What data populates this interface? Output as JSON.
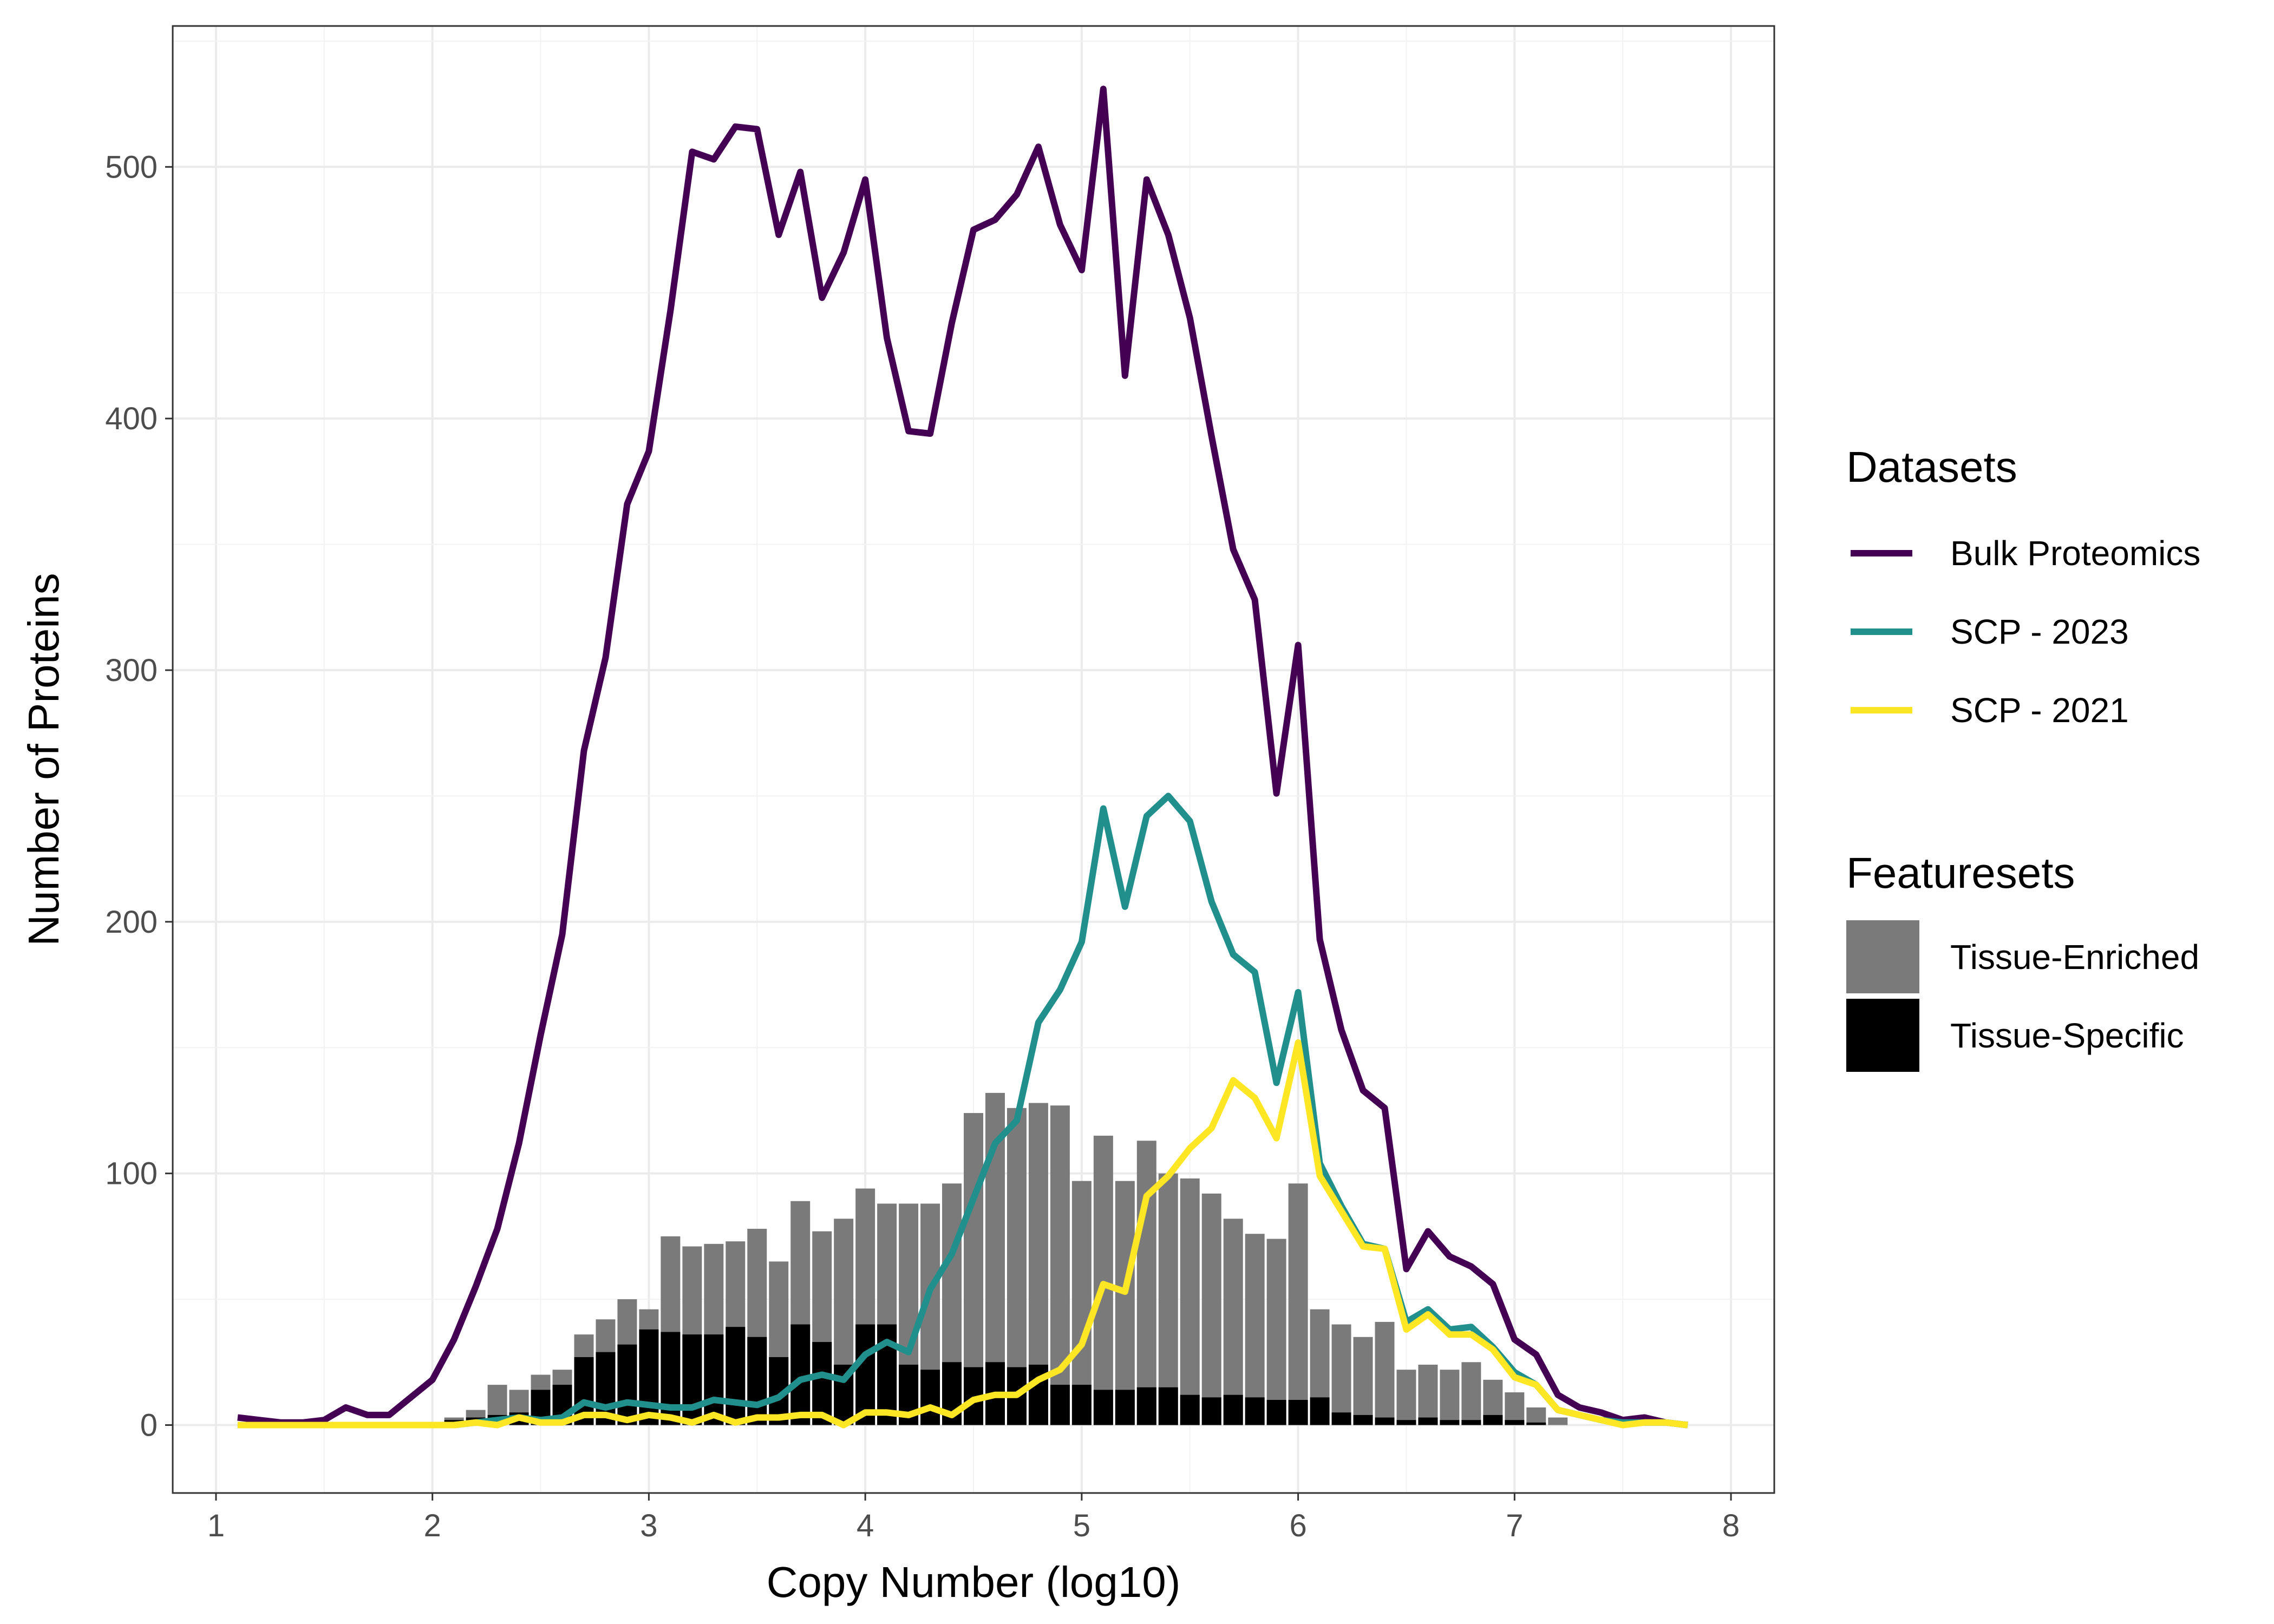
{
  "chart_data": {
    "type": "line",
    "xlabel": "Copy Number (log10)",
    "ylabel": "Number of Proteins",
    "xlim": [
      0.8,
      8.2
    ],
    "ylim": [
      -27,
      556
    ],
    "xticks": [
      1,
      2,
      3,
      4,
      5,
      6,
      7,
      8
    ],
    "xtick_labels": [
      "1",
      "2",
      "3",
      "4",
      "5",
      "6",
      "7",
      "8"
    ],
    "yticks": [
      0,
      100,
      200,
      300,
      400,
      500
    ],
    "ytick_labels": [
      "0",
      "100",
      "200",
      "300",
      "400",
      "500"
    ],
    "grid": true,
    "legend_position": "right",
    "line_legend_title": "Datasets",
    "bar_legend_title": "Featuresets",
    "series": [
      {
        "name": "Bulk Proteomics",
        "color": "#440154",
        "x": [
          1.1,
          1.2,
          1.3,
          1.4,
          1.5,
          1.6,
          1.7,
          1.8,
          1.9,
          2.0,
          2.1,
          2.2,
          2.3,
          2.4,
          2.5,
          2.6,
          2.7,
          2.8,
          2.9,
          3.0,
          3.1,
          3.2,
          3.3,
          3.4,
          3.5,
          3.6,
          3.7,
          3.8,
          3.9,
          4.0,
          4.1,
          4.2,
          4.3,
          4.4,
          4.5,
          4.6,
          4.7,
          4.8,
          4.9,
          5.0,
          5.1,
          5.2,
          5.3,
          5.4,
          5.5,
          5.6,
          5.7,
          5.8,
          5.9,
          6.0,
          6.1,
          6.2,
          6.3,
          6.4,
          6.5,
          6.6,
          6.7,
          6.8,
          6.9,
          7.0,
          7.1,
          7.2,
          7.3,
          7.4,
          7.5,
          7.6,
          7.7,
          7.8
        ],
        "values": [
          3,
          2,
          1,
          1,
          2,
          7,
          4,
          4,
          11,
          18,
          34,
          55,
          78,
          112,
          155,
          195,
          268,
          305,
          366,
          387,
          443,
          506,
          503,
          516,
          515,
          473,
          498,
          448,
          466,
          495,
          432,
          395,
          394,
          438,
          475,
          479,
          489,
          508,
          477,
          459,
          531,
          417,
          495,
          473,
          440,
          393,
          348,
          328,
          251,
          310,
          193,
          157,
          133,
          126,
          62,
          77,
          67,
          63,
          56,
          34,
          28,
          12,
          7,
          5,
          2,
          3,
          1,
          0
        ]
      },
      {
        "name": "SCP - 2023",
        "color": "#21908d",
        "x": [
          1.1,
          1.2,
          1.3,
          1.4,
          1.5,
          1.6,
          1.7,
          1.8,
          1.9,
          2.0,
          2.1,
          2.2,
          2.3,
          2.4,
          2.5,
          2.6,
          2.7,
          2.8,
          2.9,
          3.0,
          3.1,
          3.2,
          3.3,
          3.4,
          3.5,
          3.6,
          3.7,
          3.8,
          3.9,
          4.0,
          4.1,
          4.2,
          4.3,
          4.4,
          4.5,
          4.6,
          4.7,
          4.8,
          4.9,
          5.0,
          5.1,
          5.2,
          5.3,
          5.4,
          5.5,
          5.6,
          5.7,
          5.8,
          5.9,
          6.0,
          6.1,
          6.2,
          6.3,
          6.4,
          6.5,
          6.6,
          6.7,
          6.8,
          6.9,
          7.0,
          7.1,
          7.2,
          7.3,
          7.4,
          7.5,
          7.6,
          7.7,
          7.8
        ],
        "values": [
          0,
          0,
          0,
          0,
          0,
          0,
          0,
          0,
          0,
          0,
          0,
          1,
          2,
          3,
          2,
          3,
          9,
          7,
          9,
          8,
          7,
          7,
          10,
          9,
          8,
          11,
          18,
          20,
          18,
          28,
          33,
          29,
          54,
          68,
          90,
          112,
          121,
          160,
          173,
          192,
          245,
          206,
          242,
          250,
          240,
          208,
          187,
          180,
          136,
          172,
          104,
          87,
          72,
          70,
          41,
          46,
          38,
          39,
          31,
          21,
          16,
          6,
          4,
          2,
          1,
          1,
          1,
          0
        ]
      },
      {
        "name": "SCP - 2021",
        "color": "#fde725",
        "x": [
          1.1,
          1.2,
          1.3,
          1.4,
          1.5,
          1.6,
          1.7,
          1.8,
          1.9,
          2.0,
          2.1,
          2.2,
          2.3,
          2.4,
          2.5,
          2.6,
          2.7,
          2.8,
          2.9,
          3.0,
          3.1,
          3.2,
          3.3,
          3.4,
          3.5,
          3.6,
          3.7,
          3.8,
          3.9,
          4.0,
          4.1,
          4.2,
          4.3,
          4.4,
          4.5,
          4.6,
          4.7,
          4.8,
          4.9,
          5.0,
          5.1,
          5.2,
          5.3,
          5.4,
          5.5,
          5.6,
          5.7,
          5.8,
          5.9,
          6.0,
          6.1,
          6.2,
          6.3,
          6.4,
          6.5,
          6.6,
          6.7,
          6.8,
          6.9,
          7.0,
          7.1,
          7.2,
          7.3,
          7.4,
          7.5,
          7.6,
          7.7,
          7.8
        ],
        "values": [
          0,
          0,
          0,
          0,
          0,
          0,
          0,
          0,
          0,
          0,
          0,
          1,
          0,
          3,
          1,
          1,
          4,
          4,
          2,
          4,
          3,
          1,
          4,
          1,
          3,
          3,
          4,
          4,
          0,
          5,
          5,
          4,
          7,
          4,
          10,
          12,
          12,
          18,
          22,
          32,
          56,
          53,
          91,
          99,
          110,
          118,
          137,
          130,
          114,
          152,
          99,
          85,
          71,
          70,
          38,
          44,
          36,
          36,
          30,
          19,
          16,
          6,
          4,
          2,
          0,
          1,
          1,
          0
        ]
      }
    ],
    "bars": {
      "x": [
        2.1,
        2.2,
        2.3,
        2.4,
        2.5,
        2.6,
        2.7,
        2.8,
        2.9,
        3.0,
        3.1,
        3.2,
        3.3,
        3.4,
        3.5,
        3.6,
        3.7,
        3.8,
        3.9,
        4.0,
        4.1,
        4.2,
        4.3,
        4.4,
        4.5,
        4.6,
        4.7,
        4.8,
        4.9,
        5.0,
        5.1,
        5.2,
        5.3,
        5.4,
        5.5,
        5.6,
        5.7,
        5.8,
        5.9,
        6.0,
        6.1,
        6.2,
        6.3,
        6.4,
        6.5,
        6.6,
        6.7,
        6.8,
        6.9,
        7.0,
        7.1,
        7.2
      ],
      "series": [
        {
          "name": "Tissue-Enriched",
          "color": "#7a7a7a",
          "values": [
            3,
            6,
            16,
            14,
            20,
            22,
            36,
            42,
            50,
            46,
            75,
            71,
            72,
            73,
            78,
            65,
            89,
            77,
            82,
            94,
            88,
            88,
            88,
            96,
            124,
            132,
            126,
            128,
            127,
            97,
            115,
            97,
            113,
            100,
            98,
            92,
            82,
            76,
            74,
            96,
            46,
            40,
            35,
            41,
            22,
            24,
            22,
            25,
            18,
            13,
            7,
            3
          ]
        },
        {
          "name": "Tissue-Specific",
          "color": "#000000",
          "values": [
            2,
            3,
            4,
            5,
            14,
            16,
            27,
            29,
            32,
            38,
            37,
            36,
            36,
            39,
            35,
            27,
            40,
            33,
            24,
            40,
            40,
            24,
            22,
            25,
            23,
            25,
            23,
            24,
            16,
            16,
            14,
            14,
            15,
            15,
            12,
            11,
            12,
            11,
            10,
            10,
            11,
            5,
            4,
            3,
            2,
            3,
            2,
            2,
            4,
            2,
            1,
            0
          ]
        }
      ]
    }
  }
}
